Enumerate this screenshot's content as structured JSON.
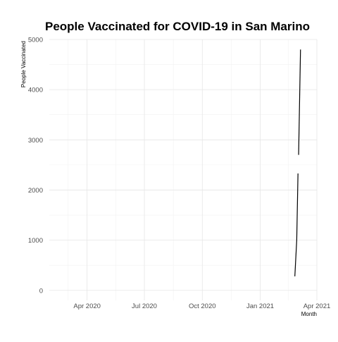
{
  "chart_data": {
    "type": "line",
    "title": "People Vaccinated for COVID-19 in San Marino",
    "xlabel": "Month",
    "ylabel": "People Vaccinated",
    "x_axis_type": "date",
    "xlim": [
      "2020-02-01",
      "2021-04-01"
    ],
    "ylim": [
      -200,
      5000
    ],
    "x_ticks": [
      {
        "value": "2020-04-01",
        "label": "Apr 2020"
      },
      {
        "value": "2020-07-01",
        "label": "Jul 2020"
      },
      {
        "value": "2020-10-01",
        "label": "Oct 2020"
      },
      {
        "value": "2021-01-01",
        "label": "Jan 2021"
      },
      {
        "value": "2021-04-01",
        "label": "Apr 2021"
      }
    ],
    "y_ticks": [
      {
        "value": 0,
        "label": "0"
      },
      {
        "value": 1000,
        "label": "1000"
      },
      {
        "value": 2000,
        "label": "2000"
      },
      {
        "value": 3000,
        "label": "3000"
      },
      {
        "value": 4000,
        "label": "4000"
      },
      {
        "value": 5000,
        "label": "5000"
      }
    ],
    "grid": true,
    "legend": "none",
    "series": [
      {
        "segments": [
          [
            {
              "x": "2021-02-25",
              "y": 280
            },
            {
              "x": "2021-02-28",
              "y": 1000
            },
            {
              "x": "2021-03-02",
              "y": 2330
            }
          ],
          [
            {
              "x": "2021-03-03",
              "y": 2700
            },
            {
              "x": "2021-03-06",
              "y": 4800
            }
          ]
        ]
      }
    ]
  },
  "colors": {
    "background": "#ffffff",
    "grid_major": "#e6e6e6",
    "grid_minor": "#f2f2f2",
    "line": "#000000",
    "axis_text": "#4d4d4d",
    "title": "#000000"
  }
}
